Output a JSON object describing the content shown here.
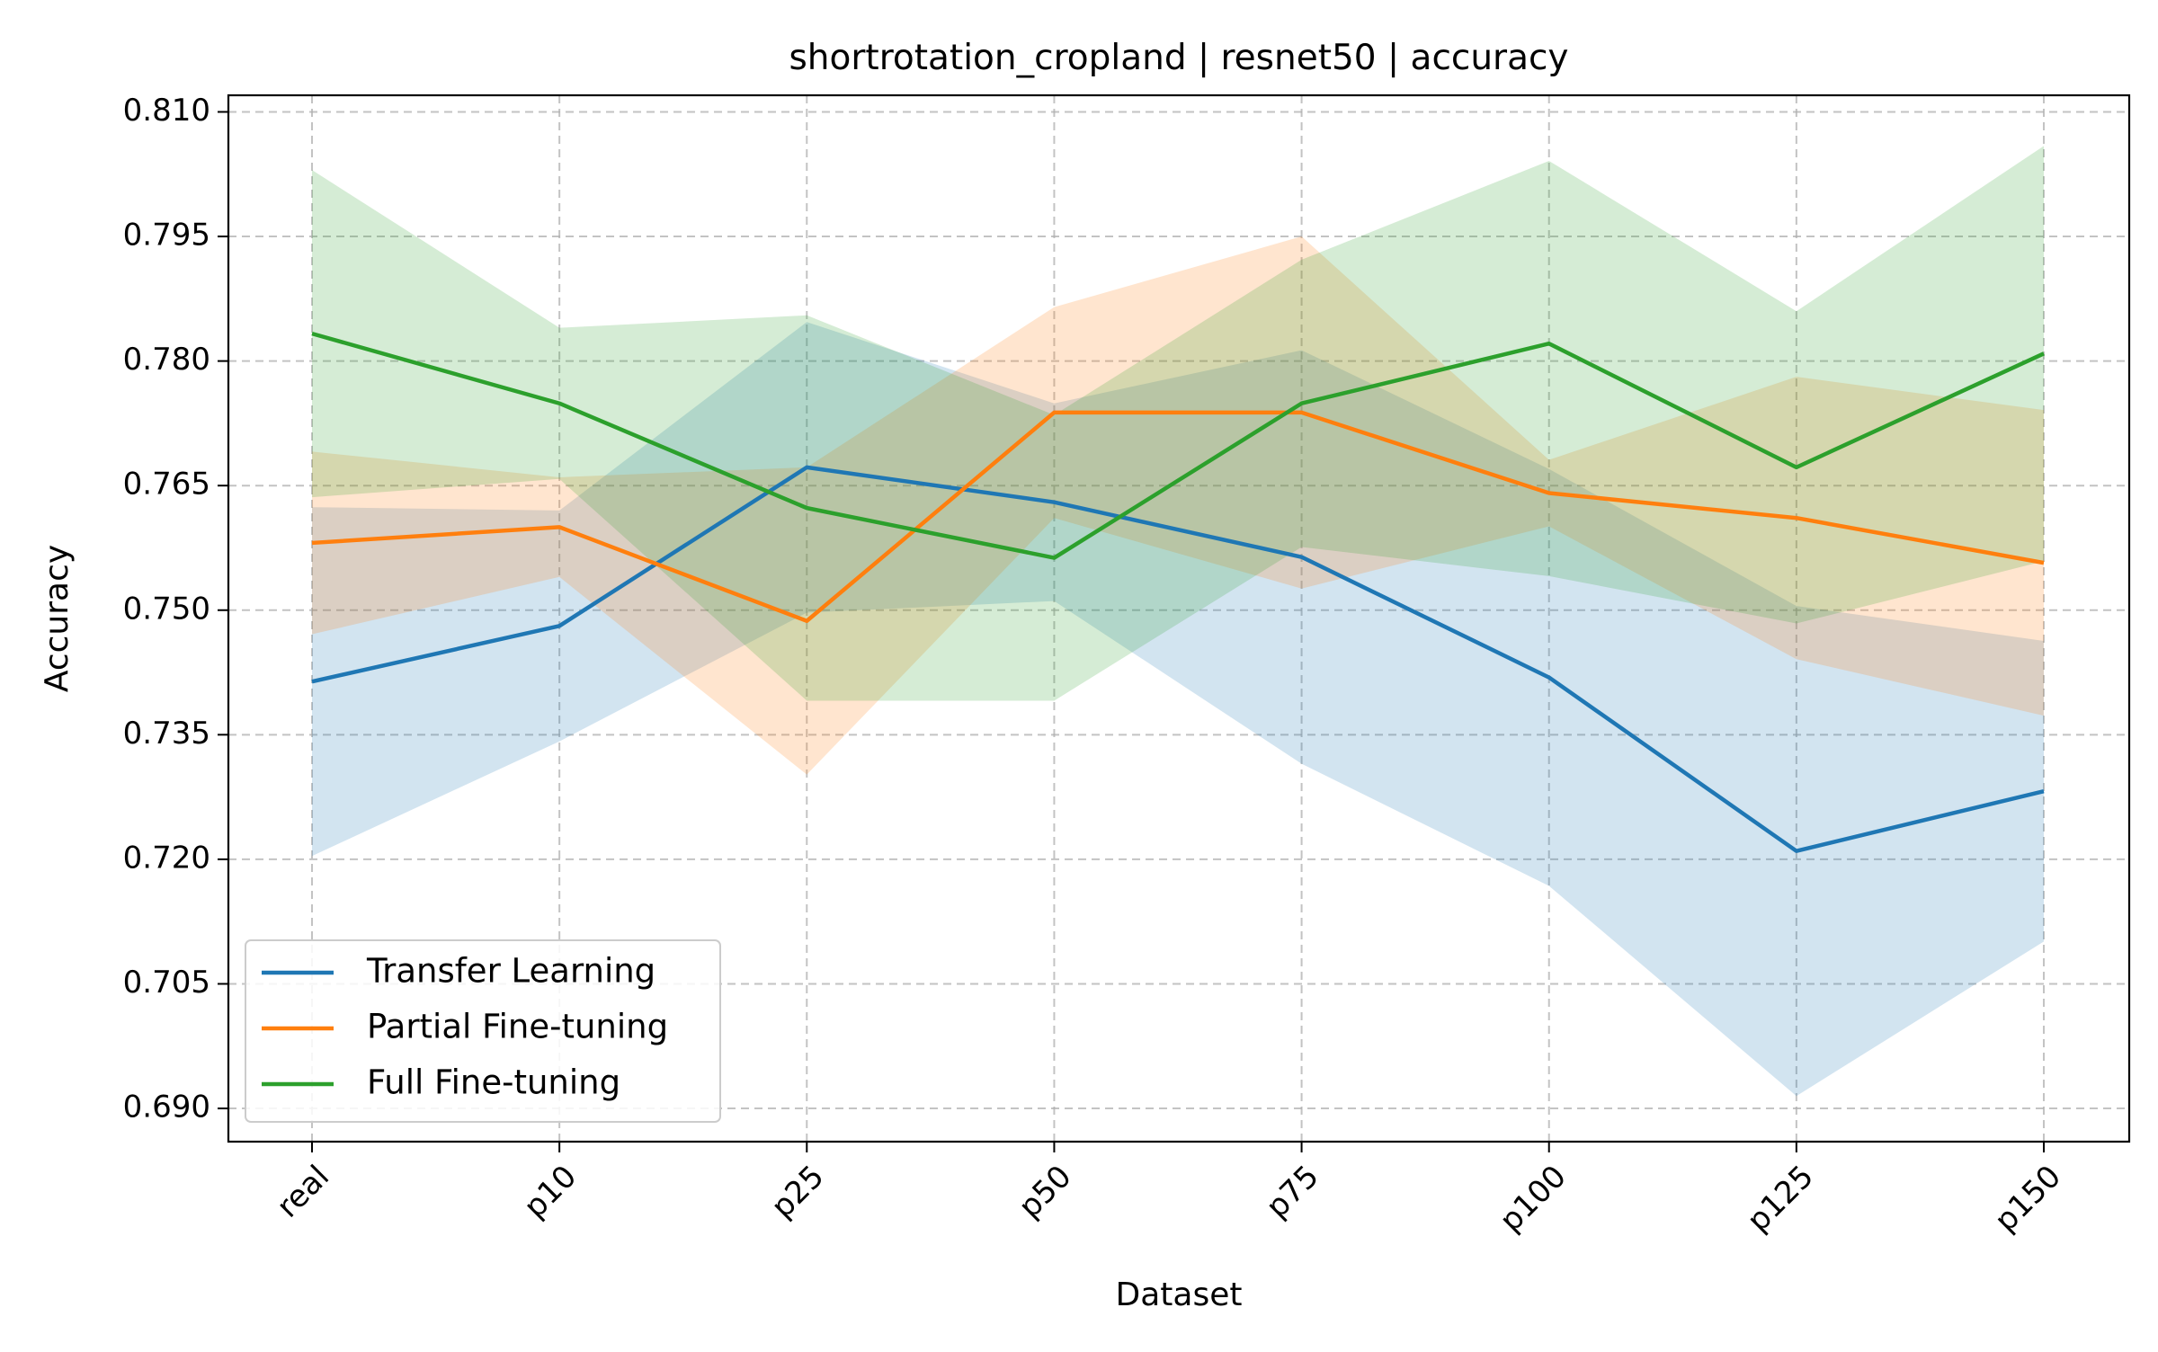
{
  "chart_data": {
    "type": "line",
    "title": "shortrotation_cropland | resnet50 | accuracy",
    "xlabel": "Dataset",
    "ylabel": "Accuracy",
    "categories": [
      "real",
      "p10",
      "p25",
      "p50",
      "p75",
      "p100",
      "p125",
      "p150"
    ],
    "ylim": [
      0.686,
      0.812
    ],
    "yticks": [
      0.69,
      0.705,
      0.72,
      0.735,
      0.75,
      0.765,
      0.78,
      0.795,
      0.81
    ],
    "ytick_labels": [
      "0.690",
      "0.705",
      "0.720",
      "0.735",
      "0.750",
      "0.765",
      "0.780",
      "0.795",
      "0.810"
    ],
    "grid": true,
    "legend_position": "lower-left",
    "series": [
      {
        "name": "Transfer Learning",
        "color": "#1f77b4",
        "values": [
          0.7414,
          0.7481,
          0.7672,
          0.763,
          0.7564,
          0.7419,
          0.721,
          0.7282
        ],
        "lower": [
          0.7204,
          0.7342,
          0.7497,
          0.7511,
          0.7315,
          0.7168,
          0.6915,
          0.7101
        ],
        "upper": [
          0.7624,
          0.762,
          0.7847,
          0.7749,
          0.7813,
          0.767,
          0.7505,
          0.7463
        ]
      },
      {
        "name": "Partial Fine-tuning",
        "color": "#ff7f0e",
        "values": [
          0.7581,
          0.76,
          0.7487,
          0.7738,
          0.7738,
          0.7641,
          0.7611,
          0.7557
        ],
        "lower": [
          0.7471,
          0.754,
          0.7302,
          0.7611,
          0.7526,
          0.7601,
          0.7441,
          0.7373
        ],
        "upper": [
          0.7691,
          0.766,
          0.7672,
          0.7865,
          0.795,
          0.7681,
          0.7781,
          0.7741
        ]
      },
      {
        "name": "Full Fine-tuning",
        "color": "#2ca02c",
        "values": [
          0.7833,
          0.7749,
          0.7623,
          0.7563,
          0.7749,
          0.7821,
          0.7672,
          0.7809
        ],
        "lower": [
          0.7636,
          0.7658,
          0.7391,
          0.7391,
          0.7576,
          0.7541,
          0.7484,
          0.7559
        ],
        "upper": [
          0.803,
          0.784,
          0.7855,
          0.7735,
          0.7922,
          0.8041,
          0.786,
          0.8059
        ]
      }
    ]
  }
}
